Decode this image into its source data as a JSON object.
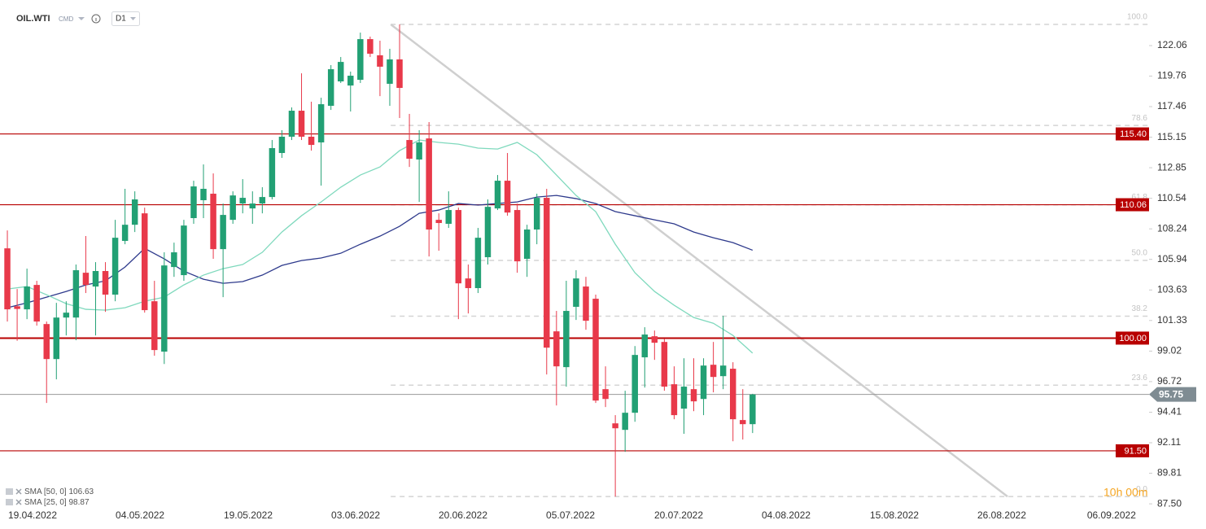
{
  "chart_data": {
    "type": "candlestick",
    "symbol": "OIL.WTI",
    "market": "CMD",
    "timeframe": "D1",
    "up_color": "#22a074",
    "down_color": "#e8394a",
    "x": [
      0,
      1,
      2,
      3,
      4,
      5,
      6,
      7,
      8,
      9,
      10,
      11,
      12,
      13,
      14,
      15,
      16,
      17,
      18,
      19,
      20,
      21,
      22,
      23,
      24,
      25,
      26,
      27,
      28,
      29,
      30,
      31,
      32,
      33,
      34,
      35,
      36,
      37,
      38,
      39,
      40,
      41,
      42,
      43,
      44,
      45,
      46,
      47,
      48,
      49,
      50,
      51,
      52,
      53,
      54,
      55,
      56,
      57,
      58,
      59,
      60,
      61,
      62,
      63,
      64,
      65,
      66,
      67,
      68,
      69,
      70,
      71,
      72,
      73,
      74,
      75,
      76
    ],
    "open": [
      106.77,
      102.4,
      102.17,
      104.01,
      101.06,
      98.42,
      101.55,
      101.55,
      104.93,
      103.89,
      105.06,
      103.28,
      107.33,
      108.55,
      109.41,
      102.78,
      98.98,
      105.36,
      104.75,
      109.05,
      110.4,
      110.89,
      106.71,
      108.92,
      110.15,
      109.78,
      110.15,
      110.64,
      113.96,
      115.19,
      117.15,
      115.19,
      114.76,
      117.52,
      119.36,
      119.05,
      119.48,
      122.55,
      121.33,
      119.18,
      121.02,
      114.94,
      113.47,
      115.06,
      108.92,
      108.62,
      109.66,
      104.5,
      103.77,
      106.1,
      109.78,
      111.87,
      109.66,
      105.98,
      108.19,
      110.58,
      100.51,
      97.81,
      102.36,
      103.89,
      102.97,
      96.15,
      93.57,
      93.08,
      94.37,
      98.55,
      100.14,
      99.71,
      96.52,
      94.68,
      96.15,
      95.41,
      97.99,
      97.13,
      97.69,
      93.82,
      93.51
    ],
    "high": [
      108.12,
      103.7,
      105.24,
      104.32,
      101.25,
      102.66,
      102.78,
      105.55,
      107.7,
      105.73,
      105.73,
      108.92,
      111.26,
      111.07,
      109.84,
      104.32,
      106.47,
      107.2,
      108.92,
      111.87,
      113.1,
      112.42,
      110.15,
      111.07,
      111.99,
      111.07,
      111.38,
      114.94,
      115.68,
      117.4,
      119.97,
      117.83,
      118.13,
      120.59,
      121.2,
      120.1,
      123.04,
      122.74,
      122.43,
      121.82,
      123.66,
      116.91,
      115.68,
      116.29,
      109.41,
      111.07,
      109.84,
      105.55,
      108.31,
      110.46,
      112.3,
      113.96,
      110.15,
      108.55,
      110.89,
      111.26,
      102.05,
      104.32,
      105.12,
      104.62,
      103.28,
      97.87,
      94.19,
      96.03,
      99.4,
      100.82,
      100.57,
      99.96,
      97.87,
      98.48,
      98.48,
      98.48,
      99.71,
      101.68,
      98.18,
      96.15,
      95.8
    ],
    "low": [
      101.25,
      99.8,
      101.43,
      100.94,
      95.11,
      96.89,
      100.2,
      99.84,
      103.4,
      100.2,
      101.98,
      102.78,
      107.08,
      108.0,
      101.92,
      98.67,
      98.05,
      104.62,
      104.32,
      108.62,
      109.05,
      105.98,
      103.09,
      108.62,
      109.41,
      108.62,
      109.41,
      110.46,
      113.59,
      114.94,
      114.94,
      114.14,
      111.5,
      117.21,
      119.24,
      117.09,
      119.24,
      121.2,
      118.25,
      117.52,
      116.6,
      112.91,
      110.27,
      106.16,
      106.59,
      108.31,
      101.43,
      101.86,
      103.4,
      105.55,
      109.66,
      109.23,
      104.93,
      104.62,
      107.08,
      97.26,
      94.92,
      96.34,
      101.37,
      100.63,
      95.11,
      94.8,
      88.05,
      91.42,
      93.69,
      96.27,
      98.36,
      96.03,
      93.88,
      92.78,
      94.49,
      94.19,
      95.91,
      96.15,
      92.22,
      92.35,
      92.84
    ],
    "close": [
      102.17,
      102.2,
      103.89,
      101.25,
      98.42,
      101.55,
      101.92,
      105.12,
      104.01,
      105.06,
      103.28,
      107.57,
      108.55,
      110.46,
      102.11,
      99.1,
      105.48,
      106.47,
      108.49,
      111.44,
      111.26,
      106.71,
      109.29,
      110.76,
      110.58,
      110.15,
      110.64,
      114.33,
      115.19,
      117.15,
      115.19,
      114.57,
      117.64,
      120.28,
      120.83,
      119.79,
      122.55,
      121.45,
      120.47,
      121.02,
      118.87,
      113.53,
      114.76,
      108.19,
      108.68,
      109.66,
      104.13,
      103.77,
      107.57,
      109.9,
      111.87,
      109.47,
      105.79,
      108.19,
      110.58,
      99.28,
      97.87,
      102.05,
      104.5,
      101.31,
      95.29,
      95.41,
      93.2,
      94.37,
      98.73,
      100.27,
      99.65,
      96.34,
      94.19,
      96.34,
      95.23,
      97.93,
      97.07,
      97.93,
      93.88,
      93.51,
      95.75
    ],
    "indicators": [
      {
        "name": "SMA [50, 0]",
        "value": 106.63,
        "color": "#2e3a8c",
        "x": [
          0,
          2,
          4,
          6,
          8,
          10,
          12,
          14,
          16,
          18,
          20,
          22,
          24,
          26,
          28,
          30,
          32,
          34,
          36,
          38,
          40,
          42,
          44,
          46,
          48,
          50,
          52,
          54,
          56,
          58,
          60,
          62,
          64,
          66,
          68,
          70,
          72,
          74,
          76
        ],
        "values": [
          102.29,
          102.66,
          103.09,
          103.52,
          104.01,
          104.32,
          105.36,
          106.77,
          105.98,
          105.05,
          104.44,
          104.13,
          104.26,
          104.75,
          105.48,
          105.85,
          106.04,
          106.4,
          107.08,
          107.69,
          108.43,
          109.41,
          109.66,
          110.15,
          110.03,
          110.15,
          110.27,
          110.64,
          110.76,
          110.52,
          110.15,
          109.54,
          109.23,
          108.92,
          108.62,
          108.0,
          107.57,
          107.2,
          106.63
        ]
      },
      {
        "name": "SMA [25, 0]",
        "value": 98.87,
        "color": "#7fd9bd",
        "x": [
          0,
          2,
          4,
          6,
          8,
          10,
          12,
          14,
          16,
          18,
          20,
          22,
          24,
          26,
          28,
          30,
          32,
          34,
          36,
          38,
          40,
          42,
          44,
          46,
          48,
          50,
          52,
          54,
          56,
          58,
          60,
          62,
          64,
          66,
          68,
          70,
          72,
          74,
          76
        ],
        "values": [
          103.7,
          103.89,
          103.27,
          102.6,
          102.17,
          102.11,
          102.29,
          102.78,
          103.09,
          104.01,
          104.75,
          105.24,
          105.55,
          106.47,
          108.0,
          109.23,
          110.27,
          111.38,
          112.3,
          112.91,
          114.14,
          114.94,
          114.76,
          114.63,
          114.33,
          114.26,
          114.76,
          113.83,
          112.3,
          110.76,
          109.54,
          107.08,
          104.93,
          103.52,
          102.48,
          101.55,
          101.12,
          100.2,
          98.87
        ]
      }
    ],
    "levels": [
      {
        "value": 115.4,
        "label": "115.40"
      },
      110.06,
      {
        "value": 100,
        "label": "100.00"
      },
      {
        "value": 91.5,
        "label": "91.50"
      }
    ],
    "level_color": "#b80000",
    "last_price": 95.75,
    "fibonacci": {
      "x": 39.1,
      "high": 123.66,
      "low": 88.05,
      "levels": [
        {
          "value": 100,
          "label": "100.0"
        },
        78.6,
        61.8,
        {
          "value": 50,
          "label": "50.0"
        },
        38.2,
        23.6,
        {
          "value": 0,
          "label": "0.0"
        }
      ]
    },
    "trendline": {
      "x": [
        39.1,
        102.0
      ],
      "y": [
        123.66,
        88.05
      ]
    },
    "countdown": "10h 00m",
    "xlim": [
      -0.75,
      116.43
    ],
    "ylim": [
      86.83,
      125.5
    ],
    "xticks": [
      {
        "value": 2.57,
        "label": "19.04.2022"
      },
      {
        "value": 13.53,
        "label": "04.05.2022"
      },
      {
        "value": 24.56,
        "label": "19.05.2022"
      },
      {
        "value": 35.52,
        "label": "03.06.2022"
      },
      {
        "value": 46.47,
        "label": "20.06.2022"
      },
      {
        "value": 57.43,
        "label": "05.07.2022"
      },
      {
        "value": 68.46,
        "label": "20.07.2022"
      },
      {
        "value": 79.42,
        "label": "04.08.2022"
      },
      {
        "value": 90.46,
        "label": "15.08.2022"
      },
      {
        "value": 101.41,
        "label": "26.08.2022"
      },
      {
        "value": 112.6,
        "label": "06.09.2022"
      }
    ],
    "yticks": [
      122.06,
      119.76,
      117.46,
      115.15,
      112.85,
      110.54,
      108.24,
      105.94,
      103.63,
      101.33,
      99.02,
      96.72,
      94.41,
      92.11,
      89.81,
      {
        "value": 87.5,
        "label": "87.50"
      }
    ]
  }
}
